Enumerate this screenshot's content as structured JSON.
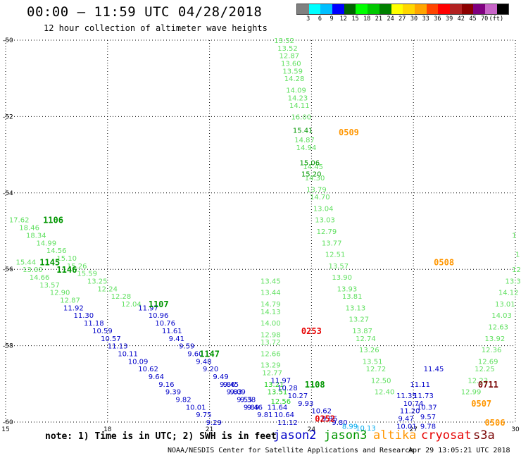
{
  "title": "00:00 — 11:59 UTC 04/28/2018",
  "subtitle": "12 hour collection of altimeter wave heights",
  "colorbar": {
    "colors": [
      "#808080",
      "#00ffff",
      "#00bfff",
      "#0000ff",
      "#006400",
      "#00ff00",
      "#00c800",
      "#008000",
      "#ffff00",
      "#ffd700",
      "#ffa500",
      "#ff4500",
      "#ff0000",
      "#b22222",
      "#8b0000",
      "#800080",
      "#c864c8",
      "#000000"
    ],
    "labels": [
      "3",
      "6",
      "9",
      "12",
      "15",
      "18",
      "21",
      "24",
      "27",
      "30",
      "33",
      "36",
      "39",
      "42",
      "45",
      "70",
      "(ft)"
    ]
  },
  "note": "note: 1) Time is in UTC; 2) SWH is in feet",
  "legend": [
    {
      "name": "jason2",
      "color": "#0000c8"
    },
    {
      "name": "jason3",
      "color": "#009600"
    },
    {
      "name": "altika",
      "color": "#ff9600"
    },
    {
      "name": "cryosat",
      "color": "#e60000"
    },
    {
      "name": "s3a",
      "color": "#780000"
    }
  ],
  "credit": "NOAA/NESDIS Center for Satellite Applications and Research",
  "timestamp": "Apr 29 13:05:21 UTC 2018",
  "chart_data": {
    "type": "scatter",
    "xlabel": "",
    "ylabel": "",
    "xlim": [
      15,
      30
    ],
    "ylim": [
      -60,
      -50
    ],
    "xticks": [
      15,
      18,
      21,
      24,
      27,
      30
    ],
    "yticks": [
      -50,
      -52,
      -54,
      -56,
      -58,
      -60
    ],
    "grid": true,
    "colors": {
      "c12": "#0000c8",
      "c15": "#009600",
      "c18": "#20d020",
      "c21": "#60e060",
      "c9": "#00aaee",
      "orange": "#ff9600",
      "red": "#e60000",
      "dark": "#780000"
    },
    "time_labels": [
      {
        "x": 16.1,
        "y": -54.7,
        "text": "1106",
        "c": "c15"
      },
      {
        "x": 16.0,
        "y": -55.8,
        "text": "1145",
        "c": "c15"
      },
      {
        "x": 16.5,
        "y": -56.0,
        "text": "1146",
        "c": "c15"
      },
      {
        "x": 19.2,
        "y": -56.9,
        "text": "1107",
        "c": "c15"
      },
      {
        "x": 20.7,
        "y": -58.2,
        "text": "1147",
        "c": "c15"
      },
      {
        "x": 23.8,
        "y": -59.0,
        "text": "1108",
        "c": "c15"
      },
      {
        "x": 24.8,
        "y": -52.4,
        "text": "0509",
        "c": "orange"
      },
      {
        "x": 27.6,
        "y": -55.8,
        "text": "0508",
        "c": "orange"
      },
      {
        "x": 28.7,
        "y": -59.5,
        "text": "0507",
        "c": "orange"
      },
      {
        "x": 29.1,
        "y": -60.0,
        "text": "0506",
        "c": "orange"
      },
      {
        "x": 23.7,
        "y": -57.6,
        "text": "0253",
        "c": "red"
      },
      {
        "x": 24.1,
        "y": -59.9,
        "text": "0252",
        "c": "red"
      },
      {
        "x": 28.9,
        "y": -59.0,
        "text": "0711",
        "c": "dark"
      }
    ],
    "series": [
      {
        "name": "",
        "c": "c21",
        "points": [
          [
            22.9,
            -50.0,
            "13.52"
          ],
          [
            23.0,
            -50.2,
            "13.52"
          ],
          [
            23.05,
            -50.4,
            "12.87"
          ],
          [
            23.1,
            -50.6,
            "13.60"
          ],
          [
            23.15,
            -50.8,
            "13.59"
          ],
          [
            23.2,
            -51.0,
            "14.28"
          ],
          [
            23.25,
            -51.3,
            "14.09"
          ],
          [
            23.3,
            -51.5,
            "14.23"
          ],
          [
            23.35,
            -51.7,
            "14.11"
          ],
          [
            23.4,
            -52.0,
            "16.00"
          ],
          [
            23.5,
            -52.6,
            "14.87"
          ],
          [
            23.55,
            -52.8,
            "14.94"
          ],
          [
            23.75,
            -53.3,
            "14.45"
          ],
          [
            23.8,
            -53.6,
            "14.30"
          ],
          [
            23.85,
            -53.9,
            "13.79"
          ],
          [
            23.95,
            -54.1,
            "14.70"
          ],
          [
            24.05,
            -54.4,
            "13.04"
          ],
          [
            24.1,
            -54.7,
            "13.03"
          ],
          [
            24.15,
            -55.0,
            "12.79"
          ],
          [
            24.3,
            -55.3,
            "13.77"
          ],
          [
            24.4,
            -55.6,
            "12.51"
          ],
          [
            24.5,
            -55.9,
            "13.57"
          ],
          [
            24.6,
            -56.2,
            "13.90"
          ],
          [
            24.75,
            -56.5,
            "13.93"
          ],
          [
            24.9,
            -56.7,
            "13.81"
          ],
          [
            25.0,
            -57.0,
            "13.13"
          ],
          [
            25.1,
            -57.3,
            "13.27"
          ],
          [
            25.2,
            -57.6,
            "13.87"
          ],
          [
            25.3,
            -57.8,
            "12.74"
          ],
          [
            25.4,
            -58.1,
            "13.26"
          ],
          [
            25.5,
            -58.4,
            "13.51"
          ],
          [
            25.6,
            -58.6,
            "12.72"
          ],
          [
            25.75,
            -58.9,
            "12.50"
          ],
          [
            25.85,
            -59.2,
            "12.40"
          ],
          [
            22.5,
            -56.3,
            "13.45"
          ],
          [
            22.5,
            -56.6,
            "13.44"
          ],
          [
            22.5,
            -56.9,
            "14.79"
          ],
          [
            22.5,
            -57.1,
            "14.13"
          ],
          [
            22.5,
            -57.4,
            "14.00"
          ],
          [
            22.5,
            -57.7,
            "12.98"
          ],
          [
            22.5,
            -57.9,
            "13.72"
          ],
          [
            22.5,
            -58.2,
            "12.66"
          ],
          [
            22.5,
            -58.5,
            "13.29"
          ],
          [
            22.55,
            -58.7,
            "12.77"
          ],
          [
            15.1,
            -54.7,
            "17.62"
          ],
          [
            15.4,
            -54.9,
            "18.46"
          ],
          [
            15.6,
            -55.1,
            "18.34"
          ],
          [
            15.9,
            -55.3,
            "14.99"
          ],
          [
            16.2,
            -55.5,
            "14.56"
          ],
          [
            16.5,
            -55.7,
            "15.10"
          ],
          [
            16.8,
            -55.9,
            "15.26"
          ],
          [
            17.1,
            -56.1,
            "15.59"
          ],
          [
            17.4,
            -56.3,
            "13.25"
          ],
          [
            17.7,
            -56.5,
            "12.24"
          ],
          [
            18.1,
            -56.7,
            "12.28"
          ],
          [
            18.4,
            -56.9,
            "12.04"
          ],
          [
            15.3,
            -55.8,
            "15.44"
          ],
          [
            15.5,
            -56.0,
            "13.00"
          ],
          [
            15.7,
            -56.2,
            "14.66"
          ],
          [
            16.0,
            -56.4,
            "13.57"
          ],
          [
            16.3,
            -56.6,
            "12.90"
          ],
          [
            16.6,
            -56.8,
            "12.87"
          ],
          [
            29.9,
            -55.1,
            "1"
          ],
          [
            30.0,
            -55.6,
            "1"
          ],
          [
            29.9,
            -56.0,
            "12.5"
          ],
          [
            29.7,
            -56.3,
            "13.31"
          ],
          [
            29.5,
            -56.6,
            "14.12"
          ],
          [
            29.4,
            -56.9,
            "13.01"
          ],
          [
            29.3,
            -57.2,
            "14.03"
          ],
          [
            29.2,
            -57.5,
            "12.63"
          ],
          [
            29.1,
            -57.8,
            "13.92"
          ],
          [
            29.0,
            -58.1,
            "12.36"
          ],
          [
            28.9,
            -58.4,
            "12.69"
          ],
          [
            28.8,
            -58.6,
            "12.25"
          ],
          [
            28.6,
            -58.9,
            "12.23"
          ],
          [
            28.4,
            -59.2,
            "12.99"
          ]
        ]
      },
      {
        "name": "",
        "c": "c15",
        "points": [
          [
            23.45,
            -52.35,
            "15.41"
          ],
          [
            23.65,
            -53.2,
            "15.06"
          ],
          [
            23.7,
            -53.5,
            "15.20"
          ]
        ]
      },
      {
        "name": "",
        "c": "c18",
        "points": [
          [
            22.6,
            -59.0,
            "13.21"
          ],
          [
            22.7,
            -59.2,
            "13.51"
          ],
          [
            22.8,
            -59.45,
            "12.56"
          ]
        ]
      },
      {
        "name": "",
        "c": "c12",
        "points": [
          [
            16.7,
            -57.0,
            "11.92"
          ],
          [
            17.0,
            -57.2,
            "11.30"
          ],
          [
            17.3,
            -57.4,
            "11.18"
          ],
          [
            17.55,
            -57.6,
            "10.59"
          ],
          [
            17.8,
            -57.8,
            "10.57"
          ],
          [
            18.0,
            -58.0,
            "11.13"
          ],
          [
            18.3,
            -58.2,
            "10.11"
          ],
          [
            18.6,
            -58.4,
            "10.09"
          ],
          [
            18.9,
            -58.6,
            "10.62"
          ],
          [
            19.2,
            -58.8,
            "9.64"
          ],
          [
            19.5,
            -59.0,
            "9.16"
          ],
          [
            19.7,
            -59.2,
            "9.39"
          ],
          [
            20.0,
            -59.4,
            "9.82"
          ],
          [
            20.3,
            -59.6,
            "10.01"
          ],
          [
            20.6,
            -59.8,
            "9.75"
          ],
          [
            20.9,
            -60.0,
            "9.29"
          ],
          [
            18.9,
            -57.0,
            "11.97"
          ],
          [
            19.2,
            -57.2,
            "10.96"
          ],
          [
            19.4,
            -57.4,
            "10.76"
          ],
          [
            19.6,
            -57.6,
            "11.61"
          ],
          [
            19.8,
            -57.8,
            "9.41"
          ],
          [
            20.1,
            -58.0,
            "9.59"
          ],
          [
            20.35,
            -58.2,
            "9.60"
          ],
          [
            20.6,
            -58.4,
            "9.48"
          ],
          [
            20.8,
            -58.6,
            "9.20"
          ],
          [
            21.1,
            -58.8,
            "9.49"
          ],
          [
            21.4,
            -59.0,
            "9.45"
          ],
          [
            21.6,
            -59.2,
            "9.09"
          ],
          [
            21.9,
            -59.4,
            "9.38"
          ],
          [
            22.1,
            -59.6,
            "9.46"
          ],
          [
            22.4,
            -59.8,
            "9.81"
          ],
          [
            21.3,
            -59.0,
            "9.86"
          ],
          [
            21.5,
            -59.2,
            "9.83"
          ],
          [
            21.8,
            -59.4,
            "9.55"
          ],
          [
            22.0,
            -59.6,
            "9.89"
          ],
          [
            22.7,
            -59.6,
            "11.64"
          ],
          [
            22.9,
            -59.8,
            "10.64"
          ],
          [
            23.0,
            -60.0,
            "11.12"
          ],
          [
            22.8,
            -58.9,
            "11.97"
          ],
          [
            23.0,
            -59.1,
            "10.28"
          ],
          [
            23.3,
            -59.3,
            "10.27"
          ],
          [
            23.6,
            -59.5,
            "9.93"
          ],
          [
            24.0,
            -59.7,
            "10.62"
          ],
          [
            24.3,
            -59.9,
            "9.96"
          ],
          [
            24.6,
            -60.0,
            "9.80"
          ],
          [
            26.5,
            -59.3,
            "11.35"
          ],
          [
            26.7,
            -59.5,
            "10.74"
          ],
          [
            26.6,
            -59.7,
            "11.20"
          ],
          [
            26.55,
            -59.9,
            "9.47"
          ],
          [
            26.5,
            -60.1,
            "10.01"
          ],
          [
            26.9,
            -59.0,
            "11.11"
          ],
          [
            27.0,
            -59.3,
            "11.73"
          ],
          [
            27.1,
            -59.6,
            "10.37"
          ],
          [
            27.2,
            -59.85,
            "9.57"
          ],
          [
            27.2,
            -60.1,
            "9.78"
          ],
          [
            27.3,
            -58.6,
            "11.45"
          ]
        ]
      },
      {
        "name": "",
        "c": "c9",
        "points": [
          [
            24.9,
            -60.1,
            "8.99"
          ],
          [
            25.3,
            -60.15,
            "10.13"
          ]
        ]
      }
    ]
  }
}
